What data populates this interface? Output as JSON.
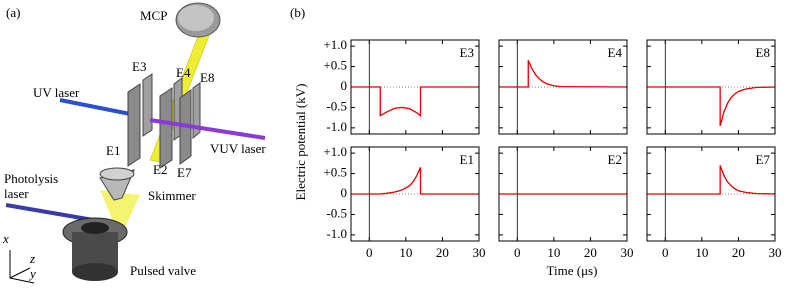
{
  "diagram": {
    "label": "(a)",
    "mcp": "MCP",
    "uv_laser": "UV laser",
    "vuv_laser": "VUV laser",
    "skimmer": "Skimmer",
    "photolysis_laser": [
      "Photolysis",
      "laser"
    ],
    "pulsed_valve": "Pulsed valve",
    "electrodes": [
      "E3",
      "E4",
      "E8",
      "E1",
      "E2",
      "E7"
    ],
    "axes": [
      "x",
      "z",
      "y"
    ]
  },
  "chart_data": {
    "type": "line",
    "label": "(b)",
    "ylabel": "Electric potential (kV)",
    "xlabel": "Time (μs)",
    "color": "#e00000",
    "xlim": [
      -5,
      30
    ],
    "ylim": [
      -1.15,
      1.15
    ],
    "xticks": [
      0,
      10,
      20,
      30
    ],
    "yticks": [
      {
        "value": 1,
        "label": "+1.0"
      },
      {
        "value": 0.5,
        "label": "+0.5"
      },
      0,
      -0.5,
      {
        "value": -1,
        "label": "-1.0"
      }
    ],
    "panels": [
      {
        "title": "E3",
        "x": [
          -5,
          3,
          3,
          5,
          7,
          9,
          11,
          13,
          14,
          14,
          30
        ],
        "values": [
          0,
          0,
          -0.7,
          -0.6,
          -0.52,
          -0.5,
          -0.53,
          -0.63,
          -0.7,
          0,
          0
        ]
      },
      {
        "title": "E4",
        "x": [
          -5,
          3,
          3,
          4,
          5,
          6,
          7,
          8,
          10,
          12,
          30
        ],
        "values": [
          0,
          0,
          0.65,
          0.45,
          0.3,
          0.2,
          0.13,
          0.08,
          0.03,
          0.01,
          0
        ]
      },
      {
        "title": "E8",
        "x": [
          -5,
          15,
          15,
          16,
          17,
          18,
          19,
          20,
          22,
          25,
          30
        ],
        "values": [
          0,
          0,
          -0.95,
          -0.62,
          -0.4,
          -0.26,
          -0.17,
          -0.11,
          -0.05,
          -0.01,
          0
        ]
      },
      {
        "title": "E1",
        "x": [
          -5,
          3,
          5,
          7,
          9,
          11,
          12,
          13,
          14,
          14,
          30
        ],
        "values": [
          0,
          0,
          0.02,
          0.05,
          0.1,
          0.2,
          0.3,
          0.45,
          0.65,
          0,
          0
        ]
      },
      {
        "title": "E2",
        "x": [
          -5,
          30
        ],
        "values": [
          0,
          0
        ]
      },
      {
        "title": "E7",
        "x": [
          -5,
          15,
          15,
          16,
          17,
          18,
          19,
          20,
          22,
          25,
          30
        ],
        "values": [
          0,
          0,
          0.7,
          0.46,
          0.3,
          0.2,
          0.13,
          0.08,
          0.04,
          0.01,
          0
        ]
      }
    ]
  }
}
